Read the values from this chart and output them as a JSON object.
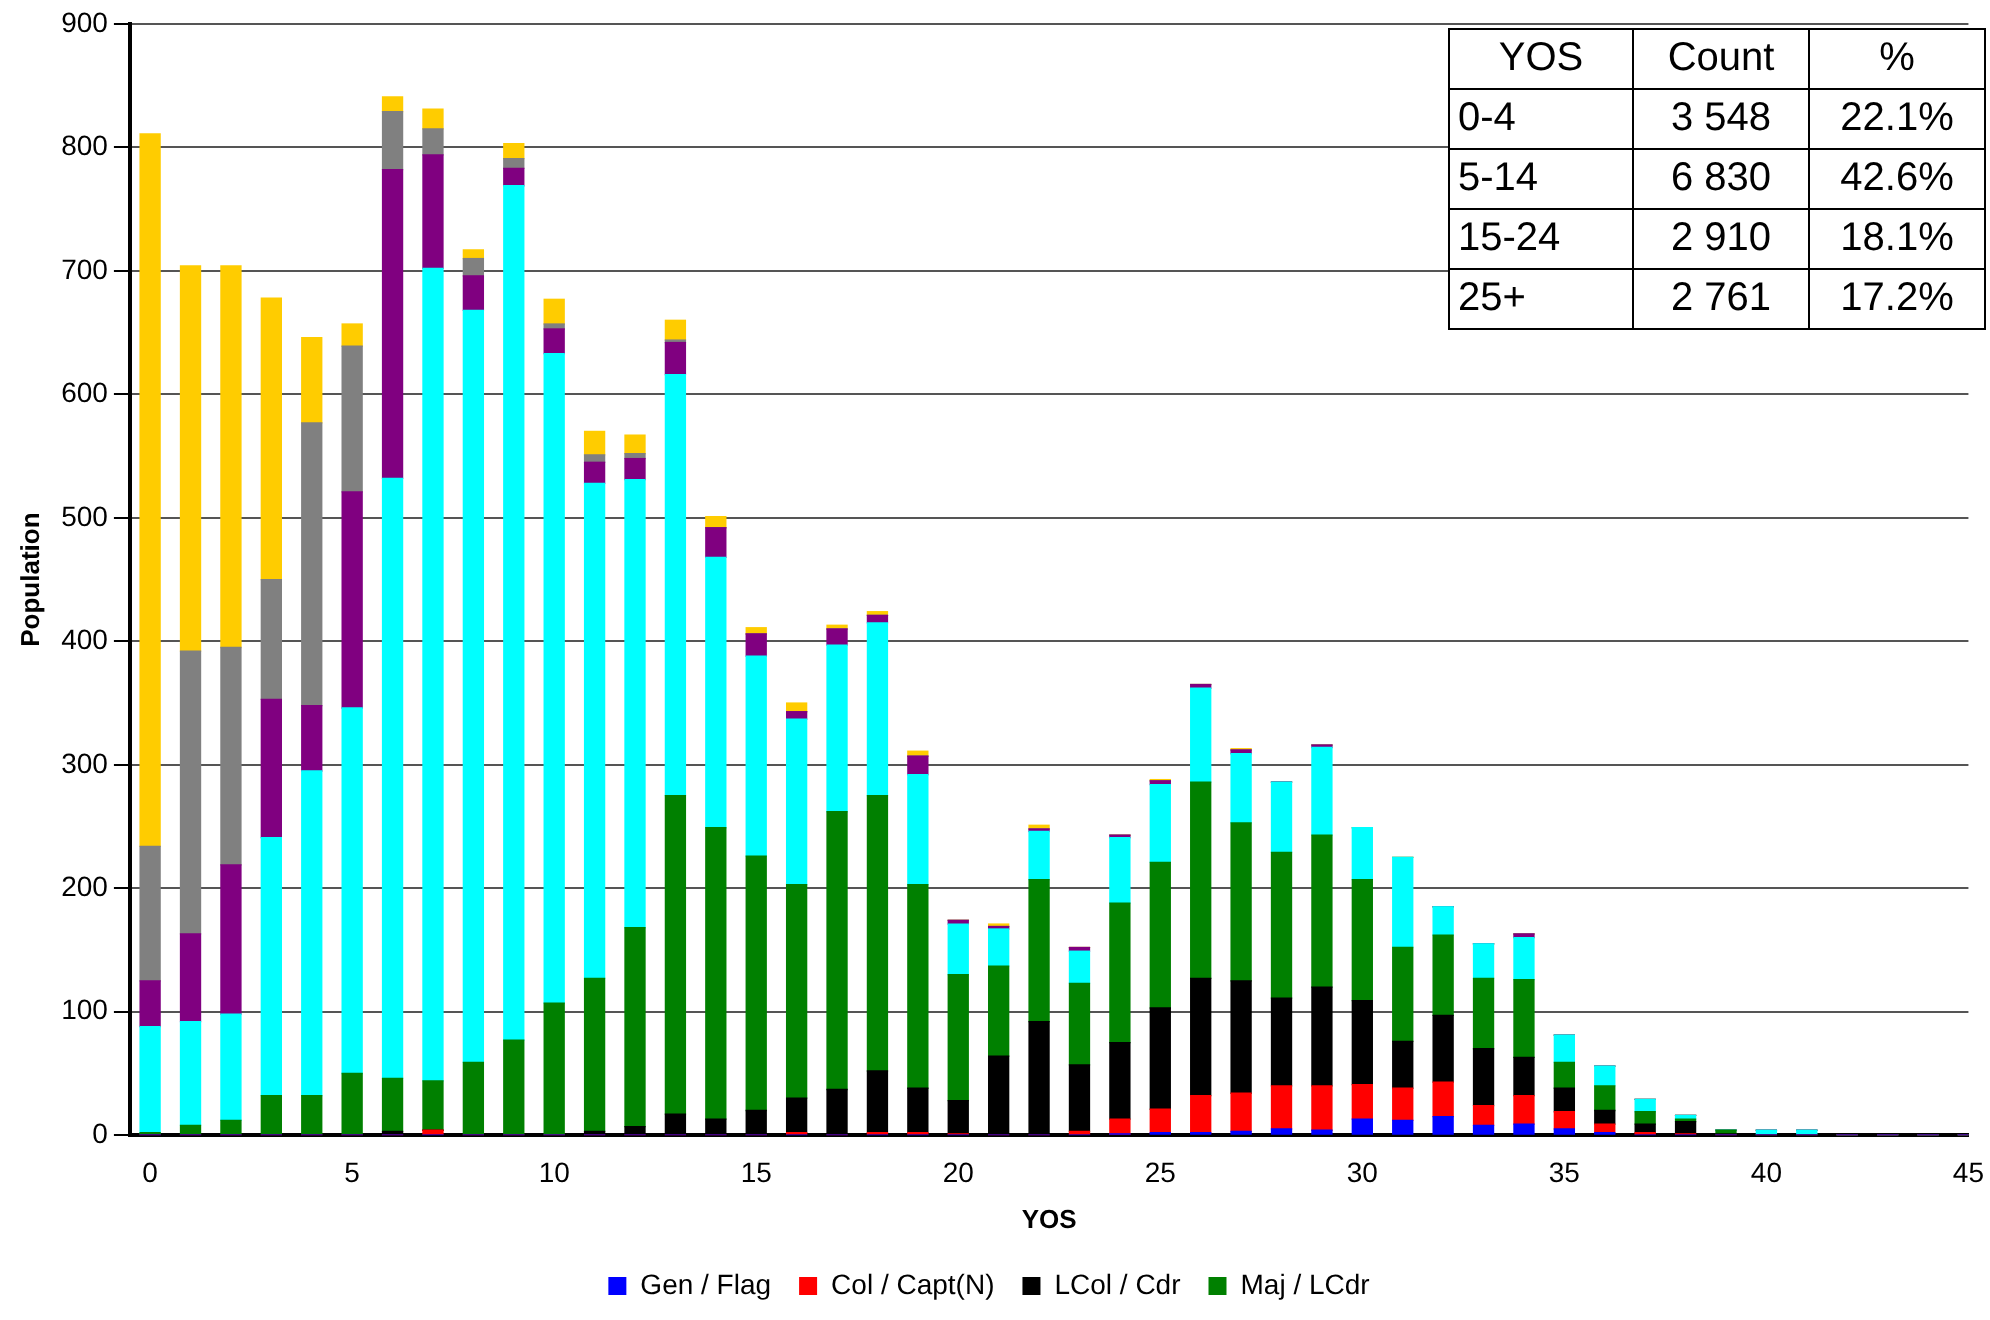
{
  "chart_data": {
    "type": "bar",
    "stacked": true,
    "xlabel": "YOS",
    "ylabel": "Population",
    "x": [
      0,
      1,
      2,
      3,
      4,
      5,
      6,
      7,
      8,
      9,
      10,
      11,
      12,
      13,
      14,
      15,
      16,
      17,
      18,
      19,
      20,
      21,
      22,
      23,
      24,
      25,
      26,
      27,
      28,
      29,
      30,
      31,
      32,
      33,
      34,
      35,
      36,
      37,
      38,
      39,
      40,
      41,
      42,
      43,
      44,
      45
    ],
    "xlim": [
      -0.5,
      45
    ],
    "xticks": [
      0,
      5,
      10,
      15,
      20,
      25,
      30,
      35,
      40,
      45
    ],
    "ylim": [
      0,
      900
    ],
    "yticks": [
      0,
      100,
      200,
      300,
      400,
      500,
      600,
      700,
      800,
      900
    ],
    "grid": "y",
    "legend": "bottom",
    "series": [
      {
        "name": "Gen / Flag",
        "color": "#0000ff",
        "values": [
          0,
          0,
          0,
          0,
          0,
          0,
          0,
          0,
          0,
          0,
          0,
          0,
          0,
          0,
          0,
          0,
          0,
          0,
          0,
          0,
          0,
          0,
          0,
          0,
          1,
          2,
          2,
          3,
          5,
          4,
          13,
          12,
          15,
          8,
          9,
          5,
          2,
          0,
          0,
          0,
          0,
          0,
          0,
          0,
          0,
          0
        ]
      },
      {
        "name": "Col / Capt(N)",
        "color": "#ff0000",
        "values": [
          0,
          0,
          0,
          0,
          0,
          0,
          0,
          4,
          0,
          0,
          0,
          0,
          0,
          0,
          0,
          0,
          2,
          0,
          2,
          2,
          1,
          0,
          0,
          3,
          12,
          19,
          30,
          31,
          35,
          36,
          28,
          26,
          28,
          16,
          23,
          14,
          7,
          2,
          1,
          0,
          0,
          0,
          0,
          0,
          0,
          0
        ]
      },
      {
        "name": "LCol / Cdr",
        "color": "#000000",
        "values": [
          0,
          0,
          0,
          0,
          0,
          0,
          3,
          0,
          0,
          0,
          null,
          3,
          7,
          17,
          13,
          20,
          28,
          37,
          50,
          36,
          27,
          64,
          92,
          54,
          62,
          82,
          95,
          91,
          71,
          80,
          68,
          38,
          54,
          46,
          31,
          19,
          11,
          7,
          10,
          1,
          0,
          0,
          0,
          0,
          0,
          0
        ]
      },
      {
        "name": "Maj / LCdr",
        "color": "#008000",
        "values": [
          2,
          8,
          12,
          32,
          32,
          50,
          43,
          40,
          59,
          77,
          107,
          124,
          161,
          258,
          236,
          206,
          173,
          225,
          223,
          165,
          102,
          73,
          115,
          66,
          113,
          118,
          159,
          128,
          118,
          123,
          98,
          76,
          65,
          57,
          63,
          21,
          20,
          10,
          2,
          3,
          0,
          0,
          0,
          0,
          0,
          0
        ]
      },
      {
        "color": "#00ffff",
        "values": [
          86,
          84,
          86,
          209,
          263,
          296,
          486,
          658,
          609,
          692,
          526,
          401,
          363,
          341,
          219,
          162,
          134,
          135,
          140,
          89,
          41,
          30,
          39,
          26,
          53,
          63,
          76,
          56,
          57,
          71,
          42,
          73,
          23,
          28,
          34,
          22,
          16,
          10,
          3,
          0,
          4,
          4,
          0,
          0,
          0,
          0
        ]
      },
      {
        "color": "#800080",
        "values": [
          37,
          71,
          121,
          112,
          53,
          175,
          250,
          92,
          28,
          14,
          20,
          17,
          17,
          26,
          24,
          18,
          6,
          13,
          6,
          15,
          3,
          2,
          2,
          3,
          2,
          3,
          3,
          3,
          0,
          2,
          null,
          null,
          0,
          0,
          3,
          0,
          0,
          0,
          0,
          0,
          0,
          0,
          0,
          0,
          0,
          0
        ]
      },
      {
        "color": "#808080",
        "values": [
          109,
          229,
          176,
          97,
          229,
          118,
          47,
          21,
          14,
          8,
          4,
          6,
          4,
          2,
          0,
          0,
          0,
          0,
          0,
          0,
          0,
          0,
          0,
          0,
          0,
          0,
          0,
          0,
          0,
          0,
          0,
          0,
          0,
          0,
          0,
          0,
          0,
          0,
          0,
          0,
          0,
          0,
          0,
          0,
          0,
          0
        ]
      },
      {
        "color": "#ffcc00",
        "values": [
          577,
          312,
          309,
          228,
          69,
          18,
          12,
          16,
          7,
          12,
          20,
          19,
          15,
          16,
          9,
          5,
          7,
          3,
          3,
          4,
          0,
          2,
          3,
          0,
          0,
          1,
          0,
          1,
          0,
          0,
          0,
          0,
          0,
          0,
          0,
          0,
          0,
          0,
          0,
          0,
          0,
          0,
          0,
          0,
          0,
          0
        ]
      }
    ],
    "annotations": [
      "YOS",
      "Count",
      "%",
      "0-4",
      "3 548",
      "22.1%",
      "5-14",
      "6 830",
      "42.6%",
      "15-24",
      "2 910",
      "18.1%",
      "25+",
      "2 761",
      "17.2%"
    ]
  }
}
